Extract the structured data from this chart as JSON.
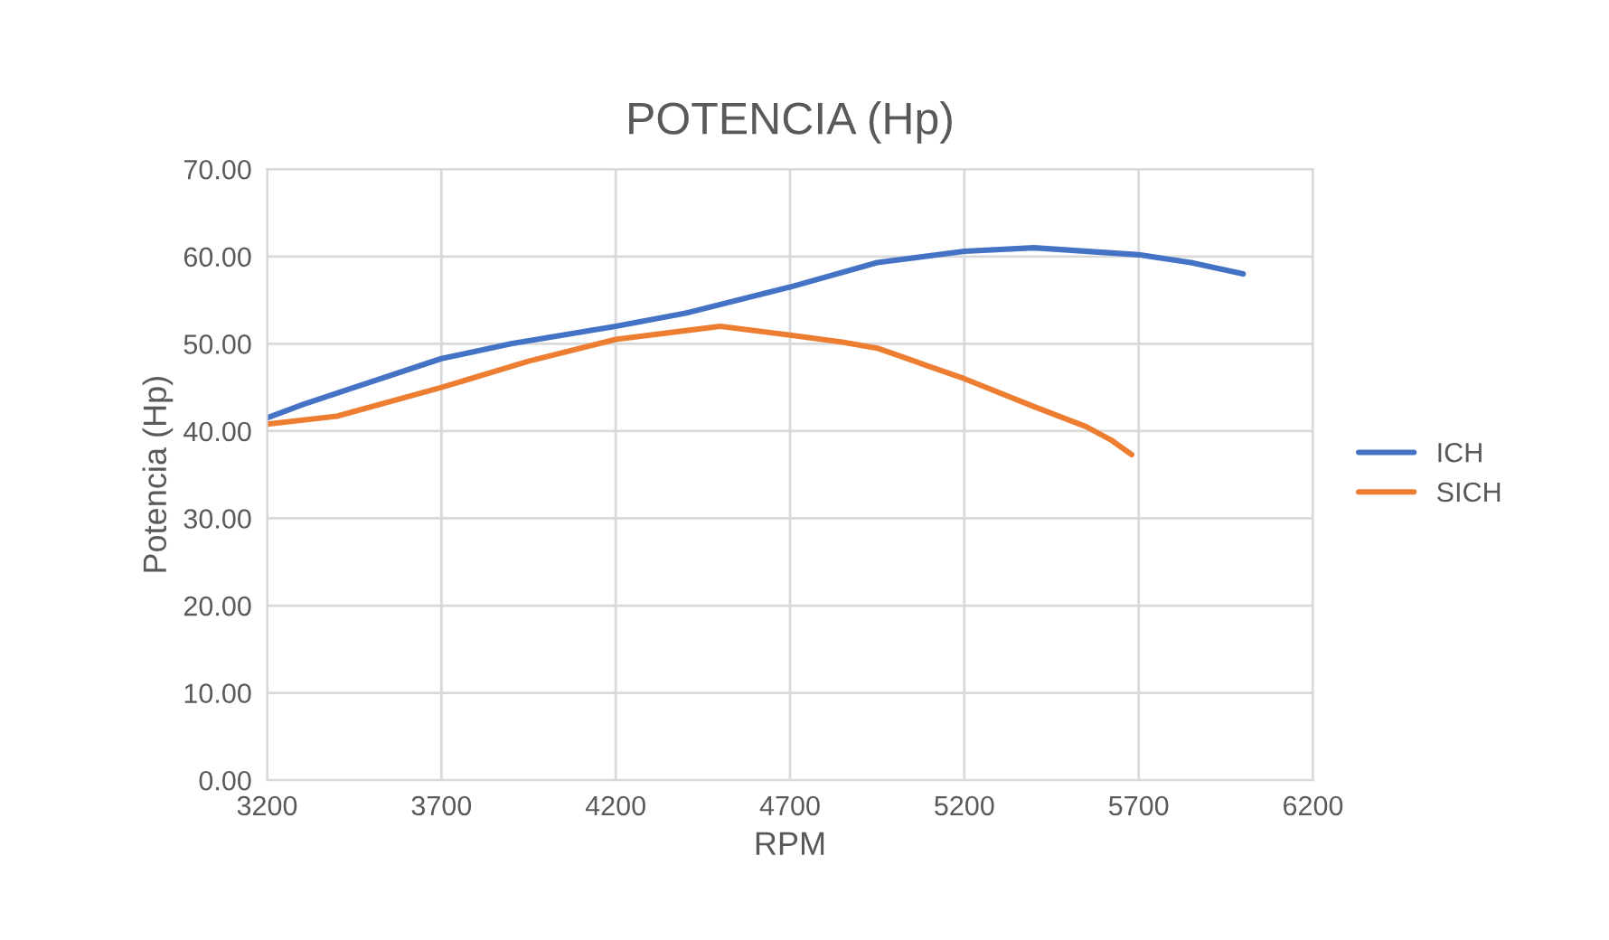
{
  "chart_data": {
    "type": "line",
    "title": "POTENCIA (Hp)",
    "xlabel": "RPM",
    "ylabel": "Potencia (Hp)",
    "xlim": [
      3200,
      6200
    ],
    "xticks": [
      3200,
      3700,
      4200,
      4700,
      5200,
      5700,
      6200
    ],
    "ylim": [
      0,
      70
    ],
    "yticks": [
      {
        "value": 0,
        "label": "0.00"
      },
      {
        "value": 10,
        "label": "10.00"
      },
      {
        "value": 20,
        "label": "20.00"
      },
      {
        "value": 30,
        "label": "30.00"
      },
      {
        "value": 40,
        "label": "40.00"
      },
      {
        "value": 50,
        "label": "50.00"
      },
      {
        "value": 60,
        "label": "60.00"
      },
      {
        "value": 70,
        "label": "70.00"
      }
    ],
    "grid": true,
    "legend": "right",
    "marker": "none",
    "line_style": "solid",
    "series": [
      {
        "name": "ICH",
        "color": "#4472c4",
        "x": [
          3200,
          3300,
          3450,
          3700,
          3900,
          4200,
          4400,
          4700,
          4950,
          5200,
          5400,
          5700,
          5850,
          6000
        ],
        "values": [
          41.5,
          43,
          45,
          48.3,
          50,
          52,
          53.5,
          56.5,
          59.3,
          60.6,
          61,
          60.2,
          59.3,
          58
        ]
      },
      {
        "name": "SICH",
        "color": "#ed7d31",
        "x": [
          3200,
          3400,
          3700,
          3950,
          4200,
          4500,
          4700,
          4850,
          4950,
          5200,
          5400,
          5550,
          5620,
          5680
        ],
        "values": [
          40.8,
          41.7,
          45,
          48,
          50.5,
          52,
          51,
          50.2,
          49.5,
          46,
          42.8,
          40.5,
          39,
          37.3
        ]
      }
    ]
  }
}
